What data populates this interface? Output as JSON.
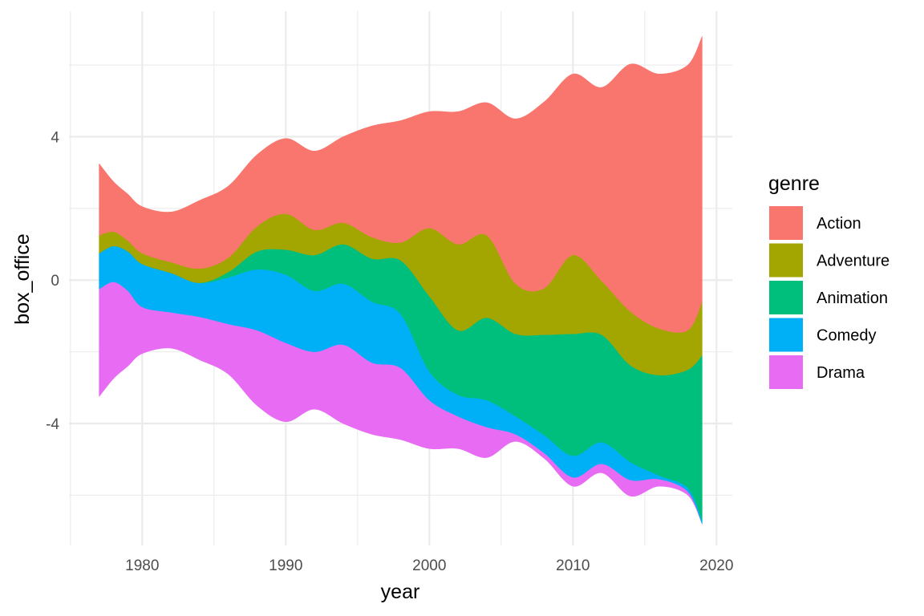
{
  "chart_data": {
    "type": "area",
    "subtype": "streamgraph",
    "title": "",
    "xlabel": "year",
    "ylabel": "box_office",
    "xlim": [
      1974.9,
      2021.1
    ],
    "ylim": [
      -7.4,
      7.5
    ],
    "x_ticks": [
      1980,
      1990,
      2000,
      2010,
      2020
    ],
    "y_ticks": [
      -4,
      0,
      4
    ],
    "grid": true,
    "legend": {
      "title": "genre",
      "position": "right"
    },
    "x": [
      1977,
      1978,
      1979,
      1980,
      1982,
      1984,
      1986,
      1988,
      1990,
      1992,
      1994,
      1996,
      1998,
      2000,
      2002,
      2004,
      2006,
      2008,
      2010,
      2012,
      2014,
      2016,
      2018,
      2019
    ],
    "series": [
      {
        "name": "Action",
        "color": "#F8766D",
        "values": [
          2.0,
          1.4,
          1.3,
          1.3,
          1.4,
          1.9,
          2.0,
          2.0,
          2.1,
          2.2,
          2.4,
          3.1,
          3.4,
          3.25,
          3.7,
          3.7,
          4.6,
          5.2,
          5.05,
          5.4,
          6.9,
          7.1,
          7.4,
          7.4
        ]
      },
      {
        "name": "Adventure",
        "color": "#A3A500",
        "values": [
          0.5,
          0.4,
          0.3,
          0.3,
          0.3,
          0.4,
          0.4,
          0.7,
          1.0,
          0.7,
          0.6,
          0.6,
          0.5,
          1.9,
          2.4,
          2.3,
          1.4,
          1.3,
          2.2,
          1.5,
          1.5,
          1.3,
          1.1,
          1.5
        ]
      },
      {
        "name": "Animation",
        "color": "#00BF7D",
        "values": [
          0.0,
          0.0,
          0.0,
          0.0,
          0.0,
          0.0,
          0.15,
          0.5,
          0.7,
          1.0,
          1.1,
          1.2,
          1.5,
          2.1,
          1.8,
          2.3,
          2.3,
          2.8,
          3.4,
          3.0,
          2.7,
          2.8,
          3.3,
          4.6
        ]
      },
      {
        "name": "Comedy",
        "color": "#00B0F6",
        "values": [
          1.0,
          1.0,
          1.1,
          1.2,
          1.1,
          0.95,
          1.3,
          1.7,
          1.9,
          1.7,
          1.7,
          1.7,
          1.5,
          0.8,
          0.6,
          0.75,
          0.5,
          0.5,
          0.6,
          0.6,
          0.5,
          0.1,
          0.1,
          0.1
        ]
      },
      {
        "name": "Drama",
        "color": "#E76BF3",
        "values": [
          3.0,
          2.7,
          2.1,
          1.3,
          1.0,
          1.2,
          1.4,
          2.1,
          2.2,
          1.6,
          2.2,
          2.0,
          2.0,
          1.35,
          0.9,
          0.85,
          0.2,
          0.15,
          0.25,
          0.25,
          0.45,
          0.2,
          0.1,
          0.0
        ]
      }
    ]
  }
}
